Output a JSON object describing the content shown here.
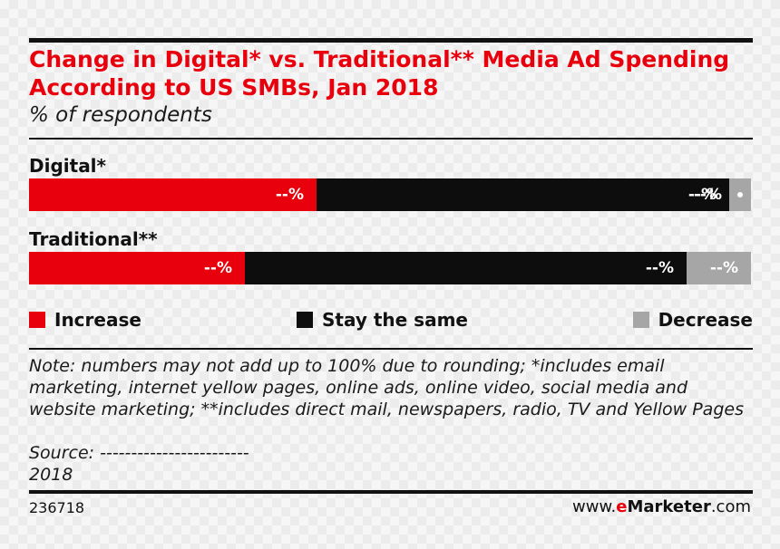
{
  "colors": {
    "increase": "#e8000d",
    "stay_same": "#0d0d0d",
    "decrease": "#a6a6a6",
    "title": "#e8000d"
  },
  "chart_data": {
    "type": "bar",
    "orientation": "horizontal",
    "stacked": true,
    "title": "Change in Digital* vs. Traditional** Media Ad Spending According to US SMBs, Jan 2018",
    "subtitle": "% of respondents",
    "categories": [
      "Digital*",
      "Traditional**"
    ],
    "series": [
      {
        "name": "Increase",
        "values": [
          39.8,
          29.9
        ],
        "labels": [
          "--%",
          "--%"
        ]
      },
      {
        "name": "Stay the same",
        "values": [
          57.2,
          61.2
        ],
        "labels": [
          "--%",
          "--%"
        ]
      },
      {
        "name": "Decrease",
        "values": [
          3.0,
          8.9
        ],
        "labels": [
          "--%",
          "--%"
        ]
      }
    ],
    "legend_position": "bottom",
    "grid": false
  },
  "note": "Note: numbers may not add up to 100% due to rounding; *includes email marketing, internet yellow pages, online ads, online video, social media and website marketing; **includes direct mail, newspapers, radio, TV and Yellow Pages",
  "source": "Source: ------------------------",
  "year": "2018",
  "chart_id": "236718",
  "credit": {
    "prefix": "www.",
    "e": "e",
    "brand": "Marketer",
    "suffix": ".com"
  }
}
